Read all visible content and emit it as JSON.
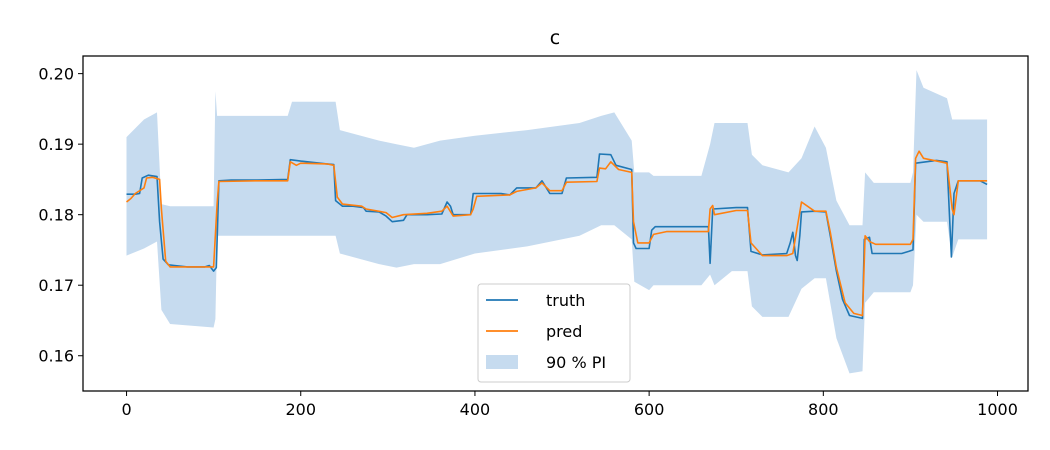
{
  "chart_data": {
    "type": "line",
    "title": "c",
    "xlabel": "",
    "ylabel": "",
    "xlim": [
      -50,
      1035
    ],
    "ylim": [
      0.155,
      0.2025
    ],
    "xticks": [
      0,
      200,
      400,
      600,
      800,
      1000
    ],
    "yticks": [
      0.16,
      0.17,
      0.18,
      0.19,
      0.2
    ],
    "xtick_labels": [
      "0",
      "200",
      "400",
      "600",
      "800",
      "1000"
    ],
    "ytick_labels": [
      "0.16",
      "0.17",
      "0.18",
      "0.19",
      "0.20"
    ],
    "grid": false,
    "legend_position": "bottom-center",
    "colors": {
      "truth": "#1f77b4",
      "pred": "#ff7f0e",
      "band": "#c6dbef"
    },
    "series": [
      {
        "name": "truth",
        "points": [
          [
            0,
            0.1829
          ],
          [
            10,
            0.1829
          ],
          [
            15,
            0.183
          ],
          [
            18,
            0.1852
          ],
          [
            25,
            0.1856
          ],
          [
            35,
            0.1854
          ],
          [
            38,
            0.179
          ],
          [
            42,
            0.1737
          ],
          [
            48,
            0.1729
          ],
          [
            55,
            0.1728
          ],
          [
            70,
            0.1726
          ],
          [
            90,
            0.1726
          ],
          [
            95,
            0.1728
          ],
          [
            100,
            0.172
          ],
          [
            103,
            0.1725
          ],
          [
            106,
            0.1848
          ],
          [
            120,
            0.1849
          ],
          [
            150,
            0.1849
          ],
          [
            185,
            0.185
          ],
          [
            188,
            0.1878
          ],
          [
            200,
            0.1876
          ],
          [
            230,
            0.1872
          ],
          [
            238,
            0.1871
          ],
          [
            240,
            0.182
          ],
          [
            248,
            0.1812
          ],
          [
            260,
            0.1812
          ],
          [
            272,
            0.181
          ],
          [
            275,
            0.1805
          ],
          [
            290,
            0.1804
          ],
          [
            298,
            0.1798
          ],
          [
            305,
            0.179
          ],
          [
            318,
            0.1792
          ],
          [
            322,
            0.18
          ],
          [
            345,
            0.18
          ],
          [
            362,
            0.1801
          ],
          [
            368,
            0.1818
          ],
          [
            372,
            0.1812
          ],
          [
            375,
            0.18
          ],
          [
            395,
            0.18
          ],
          [
            398,
            0.183
          ],
          [
            430,
            0.183
          ],
          [
            440,
            0.1828
          ],
          [
            448,
            0.1838
          ],
          [
            470,
            0.1838
          ],
          [
            477,
            0.1848
          ],
          [
            480,
            0.1842
          ],
          [
            486,
            0.183
          ],
          [
            500,
            0.183
          ],
          [
            505,
            0.1852
          ],
          [
            540,
            0.1853
          ],
          [
            543,
            0.1886
          ],
          [
            556,
            0.1885
          ],
          [
            562,
            0.187
          ],
          [
            580,
            0.1864
          ],
          [
            582,
            0.176
          ],
          [
            585,
            0.1752
          ],
          [
            600,
            0.1752
          ],
          [
            603,
            0.1778
          ],
          [
            607,
            0.1783
          ],
          [
            660,
            0.1783
          ],
          [
            668,
            0.1783
          ],
          [
            670,
            0.1731
          ],
          [
            673,
            0.1808
          ],
          [
            700,
            0.181
          ],
          [
            713,
            0.181
          ],
          [
            717,
            0.1748
          ],
          [
            730,
            0.1743
          ],
          [
            758,
            0.1745
          ],
          [
            762,
            0.176
          ],
          [
            765,
            0.1775
          ],
          [
            768,
            0.1742
          ],
          [
            770,
            0.1735
          ],
          [
            773,
            0.177
          ],
          [
            775,
            0.1804
          ],
          [
            790,
            0.1805
          ],
          [
            803,
            0.1804
          ],
          [
            808,
            0.177
          ],
          [
            815,
            0.172
          ],
          [
            822,
            0.168
          ],
          [
            830,
            0.1657
          ],
          [
            845,
            0.1653
          ],
          [
            847,
            0.1765
          ],
          [
            853,
            0.1768
          ],
          [
            856,
            0.1745
          ],
          [
            865,
            0.1745
          ],
          [
            890,
            0.1745
          ],
          [
            898,
            0.1748
          ],
          [
            903,
            0.175
          ],
          [
            906,
            0.1873
          ],
          [
            930,
            0.1877
          ],
          [
            942,
            0.1875
          ],
          [
            947,
            0.174
          ],
          [
            950,
            0.183
          ],
          [
            955,
            0.1848
          ],
          [
            980,
            0.1848
          ],
          [
            988,
            0.1843
          ]
        ]
      },
      {
        "name": "pred",
        "points": [
          [
            0,
            0.1818
          ],
          [
            5,
            0.1823
          ],
          [
            10,
            0.183
          ],
          [
            20,
            0.1838
          ],
          [
            23,
            0.1852
          ],
          [
            30,
            0.1853
          ],
          [
            38,
            0.185
          ],
          [
            40,
            0.1808
          ],
          [
            45,
            0.1734
          ],
          [
            50,
            0.1726
          ],
          [
            60,
            0.1726
          ],
          [
            90,
            0.1726
          ],
          [
            100,
            0.1726
          ],
          [
            104,
            0.1815
          ],
          [
            106,
            0.1847
          ],
          [
            150,
            0.1848
          ],
          [
            185,
            0.1848
          ],
          [
            188,
            0.1875
          ],
          [
            195,
            0.187
          ],
          [
            200,
            0.1873
          ],
          [
            230,
            0.1872
          ],
          [
            238,
            0.187
          ],
          [
            242,
            0.1825
          ],
          [
            248,
            0.1815
          ],
          [
            270,
            0.1812
          ],
          [
            275,
            0.1808
          ],
          [
            298,
            0.1803
          ],
          [
            305,
            0.1796
          ],
          [
            318,
            0.18
          ],
          [
            345,
            0.1802
          ],
          [
            362,
            0.1805
          ],
          [
            368,
            0.1812
          ],
          [
            375,
            0.1798
          ],
          [
            395,
            0.18
          ],
          [
            398,
            0.1808
          ],
          [
            402,
            0.1826
          ],
          [
            440,
            0.1828
          ],
          [
            448,
            0.1833
          ],
          [
            470,
            0.1838
          ],
          [
            477,
            0.1845
          ],
          [
            486,
            0.1834
          ],
          [
            500,
            0.1834
          ],
          [
            505,
            0.1846
          ],
          [
            540,
            0.1847
          ],
          [
            543,
            0.1866
          ],
          [
            550,
            0.1865
          ],
          [
            556,
            0.1875
          ],
          [
            565,
            0.1864
          ],
          [
            580,
            0.186
          ],
          [
            582,
            0.179
          ],
          [
            587,
            0.176
          ],
          [
            600,
            0.176
          ],
          [
            605,
            0.1772
          ],
          [
            620,
            0.1776
          ],
          [
            660,
            0.1776
          ],
          [
            668,
            0.1776
          ],
          [
            670,
            0.1808
          ],
          [
            673,
            0.1813
          ],
          [
            675,
            0.18
          ],
          [
            700,
            0.1806
          ],
          [
            713,
            0.1806
          ],
          [
            717,
            0.176
          ],
          [
            730,
            0.1742
          ],
          [
            758,
            0.1742
          ],
          [
            765,
            0.1745
          ],
          [
            775,
            0.1818
          ],
          [
            790,
            0.1805
          ],
          [
            803,
            0.1805
          ],
          [
            808,
            0.1775
          ],
          [
            815,
            0.1725
          ],
          [
            825,
            0.1675
          ],
          [
            835,
            0.166
          ],
          [
            845,
            0.1657
          ],
          [
            848,
            0.177
          ],
          [
            853,
            0.1762
          ],
          [
            860,
            0.1758
          ],
          [
            890,
            0.1758
          ],
          [
            900,
            0.1758
          ],
          [
            903,
            0.1765
          ],
          [
            906,
            0.188
          ],
          [
            910,
            0.189
          ],
          [
            915,
            0.188
          ],
          [
            942,
            0.1873
          ],
          [
            948,
            0.1808
          ],
          [
            950,
            0.18
          ],
          [
            955,
            0.1848
          ],
          [
            988,
            0.1848
          ]
        ]
      }
    ],
    "band": {
      "name": "90 % PI",
      "points": [
        [
          0,
          0.191,
          0.1742
        ],
        [
          20,
          0.1935,
          0.1752
        ],
        [
          35,
          0.1945,
          0.1762
        ],
        [
          40,
          0.1815,
          0.1665
        ],
        [
          50,
          0.1812,
          0.1645
        ],
        [
          100,
          0.1812,
          0.164
        ],
        [
          102,
          0.1975,
          0.1652
        ],
        [
          104,
          0.194,
          0.177
        ],
        [
          185,
          0.194,
          0.177
        ],
        [
          190,
          0.196,
          0.177
        ],
        [
          240,
          0.196,
          0.177
        ],
        [
          245,
          0.192,
          0.1745
        ],
        [
          290,
          0.1905,
          0.173
        ],
        [
          310,
          0.19,
          0.1725
        ],
        [
          330,
          0.1895,
          0.173
        ],
        [
          360,
          0.1905,
          0.173
        ],
        [
          400,
          0.1912,
          0.1745
        ],
        [
          460,
          0.192,
          0.1755
        ],
        [
          520,
          0.193,
          0.177
        ],
        [
          545,
          0.194,
          0.1785
        ],
        [
          560,
          0.1945,
          0.1785
        ],
        [
          580,
          0.1905,
          0.1765
        ],
        [
          583,
          0.186,
          0.1705
        ],
        [
          600,
          0.186,
          0.1693
        ],
        [
          605,
          0.1855,
          0.17
        ],
        [
          660,
          0.1855,
          0.17
        ],
        [
          670,
          0.19,
          0.1715
        ],
        [
          675,
          0.193,
          0.17
        ],
        [
          695,
          0.193,
          0.172
        ],
        [
          713,
          0.193,
          0.172
        ],
        [
          718,
          0.1885,
          0.167
        ],
        [
          730,
          0.187,
          0.1655
        ],
        [
          760,
          0.186,
          0.1655
        ],
        [
          775,
          0.188,
          0.1695
        ],
        [
          790,
          0.1925,
          0.171
        ],
        [
          803,
          0.1895,
          0.171
        ],
        [
          815,
          0.182,
          0.1625
        ],
        [
          830,
          0.1785,
          0.1575
        ],
        [
          845,
          0.1785,
          0.1578
        ],
        [
          848,
          0.186,
          0.1675
        ],
        [
          858,
          0.1845,
          0.169
        ],
        [
          900,
          0.1845,
          0.169
        ],
        [
          903,
          0.186,
          0.17
        ],
        [
          907,
          0.2005,
          0.18
        ],
        [
          915,
          0.198,
          0.179
        ],
        [
          942,
          0.1965,
          0.179
        ],
        [
          948,
          0.1935,
          0.174
        ],
        [
          955,
          0.1935,
          0.1765
        ],
        [
          988,
          0.1935,
          0.1765
        ]
      ]
    }
  }
}
